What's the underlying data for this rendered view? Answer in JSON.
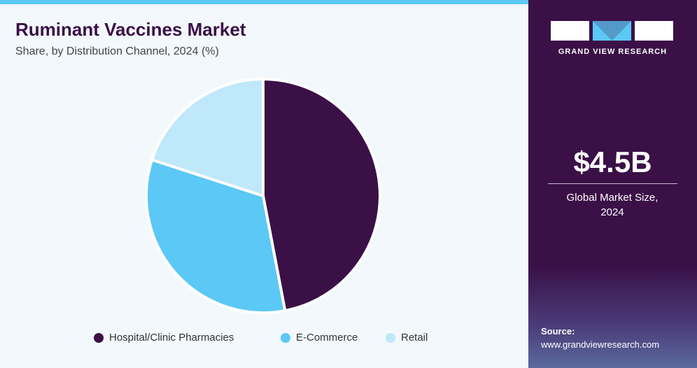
{
  "chart_data": {
    "type": "pie",
    "title": "Ruminant Vaccines Market",
    "subtitle": "Share, by Distribution Channel, 2024 (%)",
    "categories": [
      "Hospital/Clinic Pharmacies",
      "E-Commerce",
      "Retail"
    ],
    "values": [
      47,
      33,
      20
    ],
    "colors": [
      "#3a1047",
      "#5bc8f5",
      "#bfe8fa"
    ]
  },
  "brand": "GRAND VIEW RESEARCH",
  "market_size": "$4.5B",
  "market_size_label": "Global Market Size, 2024",
  "source_label": "Source:",
  "source_url": "www.grandviewresearch.com"
}
